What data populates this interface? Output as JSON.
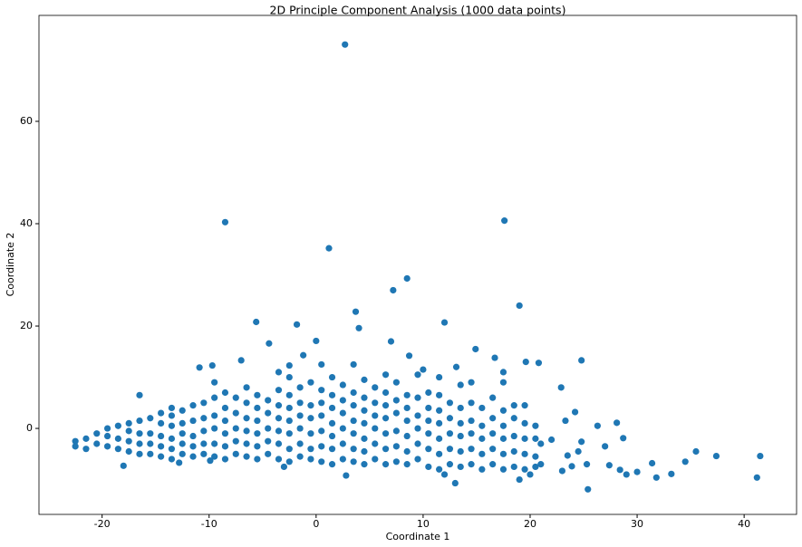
{
  "chart_data": {
    "type": "scatter",
    "title": "2D Principle Component Analysis (1000 data points)",
    "x_label": "Coordinate 1",
    "y_label": "Coordinate 2",
    "color": "#1f77b4",
    "xlim": [
      -25.9,
      44.9
    ],
    "ylim": [
      -16.8,
      80.7
    ],
    "xticks": [
      -20,
      -10,
      0,
      10,
      20,
      30,
      40
    ],
    "yticks": [
      0,
      20,
      40,
      60
    ],
    "x": [
      2.7,
      -8.5,
      17.6,
      1.2,
      8.5,
      7.2,
      19,
      3.7,
      -5.6,
      12,
      -1.8,
      4,
      0,
      7,
      -4.4,
      14.9,
      16.7,
      -7,
      19.6,
      20.8,
      24.8,
      -10.9,
      -9.7,
      17.5,
      22.9,
      8.7,
      -1.2,
      10,
      13.1,
      -2.5,
      41.5,
      41.2,
      37.4,
      35.5,
      34.5,
      33.2,
      31.8,
      31.4,
      30,
      29,
      28.4,
      28.7,
      28.1,
      27.4,
      27,
      26.3,
      25.4,
      25.3,
      24.8,
      24.5,
      24.2,
      23.9,
      23.5,
      23,
      23.3,
      22,
      21,
      21,
      20,
      19,
      20.5,
      13,
      2.8,
      -18,
      -3,
      -12.8,
      -9.9,
      12,
      -22.5,
      -22.5,
      -21.5,
      -21.5,
      -20.5,
      -20.5,
      -19.5,
      -19.5,
      -19.5,
      -18.5,
      -18.5,
      -18.5,
      -17.5,
      -17.5,
      -17.5,
      -17.5,
      -16.5,
      -16.5,
      -16.5,
      -16.5,
      -16.5,
      -15.5,
      -15.5,
      -15.5,
      -15.5,
      -14.5,
      -14.5,
      -14.5,
      -14.5,
      -14.5,
      -13.5,
      -13.5,
      -13.5,
      -13.5,
      -13.5,
      -13.5,
      -12.5,
      -12.5,
      -12.5,
      -12.5,
      -12.5,
      -11.5,
      -11.5,
      -11.5,
      -11.5,
      -11.5,
      -10.5,
      -10.5,
      -10.5,
      -10.5,
      -10.5,
      -9.5,
      -9.5,
      -9.5,
      -9.5,
      -9.5,
      -9.5,
      -8.5,
      -8.5,
      -8.5,
      -8.5,
      -8.5,
      -8.5,
      -7.5,
      -7.5,
      -7.5,
      -7.5,
      -7.5,
      -6.5,
      -6.5,
      -6.5,
      -6.5,
      -6.5,
      -6.5,
      -5.5,
      -5.5,
      -5.5,
      -5.5,
      -5.5,
      -5.5,
      -4.5,
      -4.5,
      -4.5,
      -4.5,
      -4.5,
      -3.5,
      -3.5,
      -3.5,
      -3.5,
      -3.5,
      -3.5,
      -3.5,
      -2.5,
      -2.5,
      -2.5,
      -2.5,
      -2.5,
      -2.5,
      -2.5,
      -1.5,
      -1.5,
      -1.5,
      -1.5,
      -1.5,
      -1.5,
      -0.5,
      -0.5,
      -0.5,
      -0.5,
      -0.5,
      -0.5,
      0.5,
      0.5,
      0.5,
      0.5,
      0.5,
      0.5,
      0.5,
      1.5,
      1.5,
      1.5,
      1.5,
      1.5,
      1.5,
      1.5,
      2.5,
      2.5,
      2.5,
      2.5,
      2.5,
      2.5,
      3.5,
      3.5,
      3.5,
      3.5,
      3.5,
      3.5,
      3.5,
      4.5,
      4.5,
      4.5,
      4.5,
      4.5,
      4.5,
      4.5,
      5.5,
      5.5,
      5.5,
      5.5,
      5.5,
      5.5,
      6.5,
      6.5,
      6.5,
      6.5,
      6.5,
      6.5,
      6.5,
      7.5,
      7.5,
      7.5,
      7.5,
      7.5,
      7.5,
      8.5,
      8.5,
      8.5,
      8.5,
      8.5,
      8.5,
      9.5,
      9.5,
      9.5,
      9.5,
      9.5,
      9.5,
      10.5,
      10.5,
      10.5,
      10.5,
      10.5,
      10.5,
      11.5,
      11.5,
      11.5,
      11.5,
      11.5,
      11.5,
      11.5,
      12.5,
      12.5,
      12.5,
      12.5,
      12.5,
      13.5,
      13.5,
      13.5,
      13.5,
      13.5,
      13.5,
      14.5,
      14.5,
      14.5,
      14.5,
      14.5,
      14.5,
      15.5,
      15.5,
      15.5,
      15.5,
      15.5,
      16.5,
      16.5,
      16.5,
      16.5,
      16.5,
      17.5,
      17.5,
      17.5,
      17.5,
      17.5,
      17.5,
      18.5,
      18.5,
      18.5,
      18.5,
      18.5,
      19.5,
      19.5,
      19.5,
      19.5,
      19.5,
      20.5,
      20.5,
      20.5
    ],
    "values": [
      75,
      40.3,
      40.6,
      35.2,
      29.3,
      27,
      24,
      22.8,
      20.8,
      20.7,
      20.3,
      19.6,
      17.1,
      17,
      16.6,
      15.5,
      13.8,
      13.3,
      13,
      12.8,
      13.3,
      11.9,
      12.3,
      11,
      8,
      14.2,
      14.3,
      11.5,
      12,
      12.3,
      -5.4,
      -9.6,
      -5.4,
      -4.5,
      -6.5,
      -8.9,
      -9.6,
      -6.8,
      -8.5,
      -9,
      -8.1,
      -1.9,
      1.1,
      -7.2,
      -3.5,
      0.5,
      -11.9,
      -7,
      -2.6,
      -4.5,
      3.2,
      -7.4,
      -5.3,
      -8.3,
      1.5,
      -2.2,
      -7,
      -3,
      -9,
      -10,
      -5.5,
      -10.7,
      -9.2,
      -7.3,
      -7.5,
      -6.7,
      -6.3,
      -9,
      -3.5,
      -2.5,
      -4,
      -2,
      -3,
      -1,
      -3.5,
      -1.5,
      0,
      -4,
      -2,
      0.5,
      -4.5,
      -2.5,
      -0.5,
      1,
      -5,
      -3,
      -1,
      1.5,
      6.5,
      -5,
      -3,
      -1,
      2,
      -5.5,
      -3.5,
      -1.5,
      1,
      3,
      -6,
      -4,
      -2,
      0.5,
      2.5,
      4,
      -5,
      -3,
      -1,
      1,
      3.5,
      -5.5,
      -3.5,
      -1.5,
      1.5,
      4.5,
      -5,
      -3,
      -0.5,
      2,
      5,
      -5.5,
      -3,
      0,
      2.5,
      6,
      9,
      -6,
      -3.5,
      -1,
      1.5,
      4,
      7,
      -5,
      -2.5,
      0,
      3,
      6,
      -5.5,
      -3,
      -0.5,
      2,
      5,
      8,
      -6,
      -3.5,
      -1,
      1.5,
      4,
      6.5,
      -5,
      -2.5,
      0,
      3,
      5.5,
      -6,
      -3,
      -0.5,
      2,
      4.5,
      7.5,
      11,
      -6.5,
      -4,
      -1,
      1.5,
      4,
      6.5,
      10,
      -5.5,
      -3,
      0,
      2.5,
      5,
      8,
      -6,
      -4,
      -1,
      2,
      4.5,
      9,
      -6.5,
      -3.5,
      -0.5,
      2.5,
      5,
      7.5,
      12.5,
      -7,
      -4,
      -1.5,
      1,
      4,
      6.5,
      10,
      -6,
      -3,
      0,
      3,
      5.5,
      8.5,
      -6.5,
      -4,
      -1,
      1.5,
      4.5,
      7,
      12.5,
      -7,
      -4.5,
      -2,
      1,
      3.5,
      6,
      9.5,
      -6,
      -3,
      0,
      2.5,
      5,
      8,
      -7,
      -4,
      -1,
      2,
      4.5,
      7,
      10.5,
      -6.5,
      -3.5,
      -0.5,
      3,
      5.5,
      9,
      -7,
      -4.5,
      -1.5,
      1.5,
      4,
      6.5,
      -6,
      -3,
      0,
      2.5,
      6,
      10.5,
      -7.5,
      -4,
      -1,
      1.5,
      4,
      7,
      -8,
      -5,
      -2,
      1,
      3.5,
      6.5,
      10,
      -7,
      -4,
      -1,
      2,
      5,
      -7.5,
      -4.5,
      -1.5,
      1,
      4,
      8.5,
      -7,
      -4,
      -1,
      1.5,
      5,
      9,
      -8,
      -5,
      -2,
      0.5,
      4,
      -7,
      -4,
      -1,
      2,
      6,
      -8,
      -5,
      -2,
      0.5,
      3.5,
      9,
      -7.5,
      -4.5,
      -1.5,
      2,
      4.5,
      -8,
      -5,
      -2,
      1,
      4.5,
      -7.5,
      -2,
      0.5
    ]
  }
}
